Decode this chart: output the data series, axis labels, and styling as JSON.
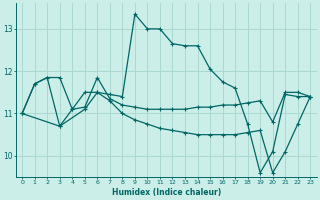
{
  "xlabel": "Humidex (Indice chaleur)",
  "background_color": "#cceee8",
  "grid_color": "#aad8d0",
  "line_color": "#006666",
  "xlim": [
    -0.5,
    23.5
  ],
  "ylim": [
    9.5,
    13.6
  ],
  "xticks": [
    0,
    1,
    2,
    3,
    4,
    5,
    6,
    7,
    8,
    9,
    10,
    11,
    12,
    13,
    14,
    15,
    16,
    17,
    18,
    19,
    20,
    21,
    22,
    23
  ],
  "yticks": [
    10,
    11,
    12,
    13
  ],
  "line1_x": [
    0,
    1,
    2,
    3,
    4,
    5,
    6,
    7,
    8,
    9,
    10,
    11,
    12,
    13,
    14,
    15,
    16,
    17,
    18,
    19,
    20,
    21,
    22,
    23
  ],
  "line1_y": [
    11.0,
    11.7,
    11.85,
    11.85,
    11.1,
    11.5,
    11.5,
    11.45,
    11.4,
    13.35,
    13.0,
    13.0,
    12.65,
    12.6,
    12.6,
    12.05,
    11.75,
    11.6,
    10.75,
    9.6,
    10.1,
    11.45,
    11.4,
    11.4
  ],
  "line2_x": [
    0,
    1,
    2,
    3,
    4,
    5,
    6,
    7,
    8,
    9,
    10,
    11,
    12,
    13,
    14,
    15,
    16,
    17,
    18,
    19,
    20,
    21,
    22,
    23
  ],
  "line2_y": [
    11.0,
    11.7,
    11.85,
    10.7,
    11.1,
    11.15,
    11.85,
    11.35,
    11.2,
    11.15,
    11.1,
    11.1,
    11.1,
    11.1,
    11.15,
    11.15,
    11.2,
    11.2,
    11.25,
    11.3,
    10.8,
    11.5,
    11.5,
    11.4
  ],
  "line3_x": [
    0,
    3,
    5,
    6,
    7,
    8,
    9,
    10,
    11,
    12,
    13,
    14,
    15,
    16,
    17,
    18,
    19,
    20,
    21,
    22,
    23
  ],
  "line3_y": [
    11.0,
    10.7,
    11.1,
    11.5,
    11.3,
    11.0,
    10.85,
    10.75,
    10.65,
    10.6,
    10.55,
    10.5,
    10.5,
    10.5,
    10.5,
    10.55,
    10.6,
    9.6,
    10.1,
    10.75,
    11.4
  ]
}
